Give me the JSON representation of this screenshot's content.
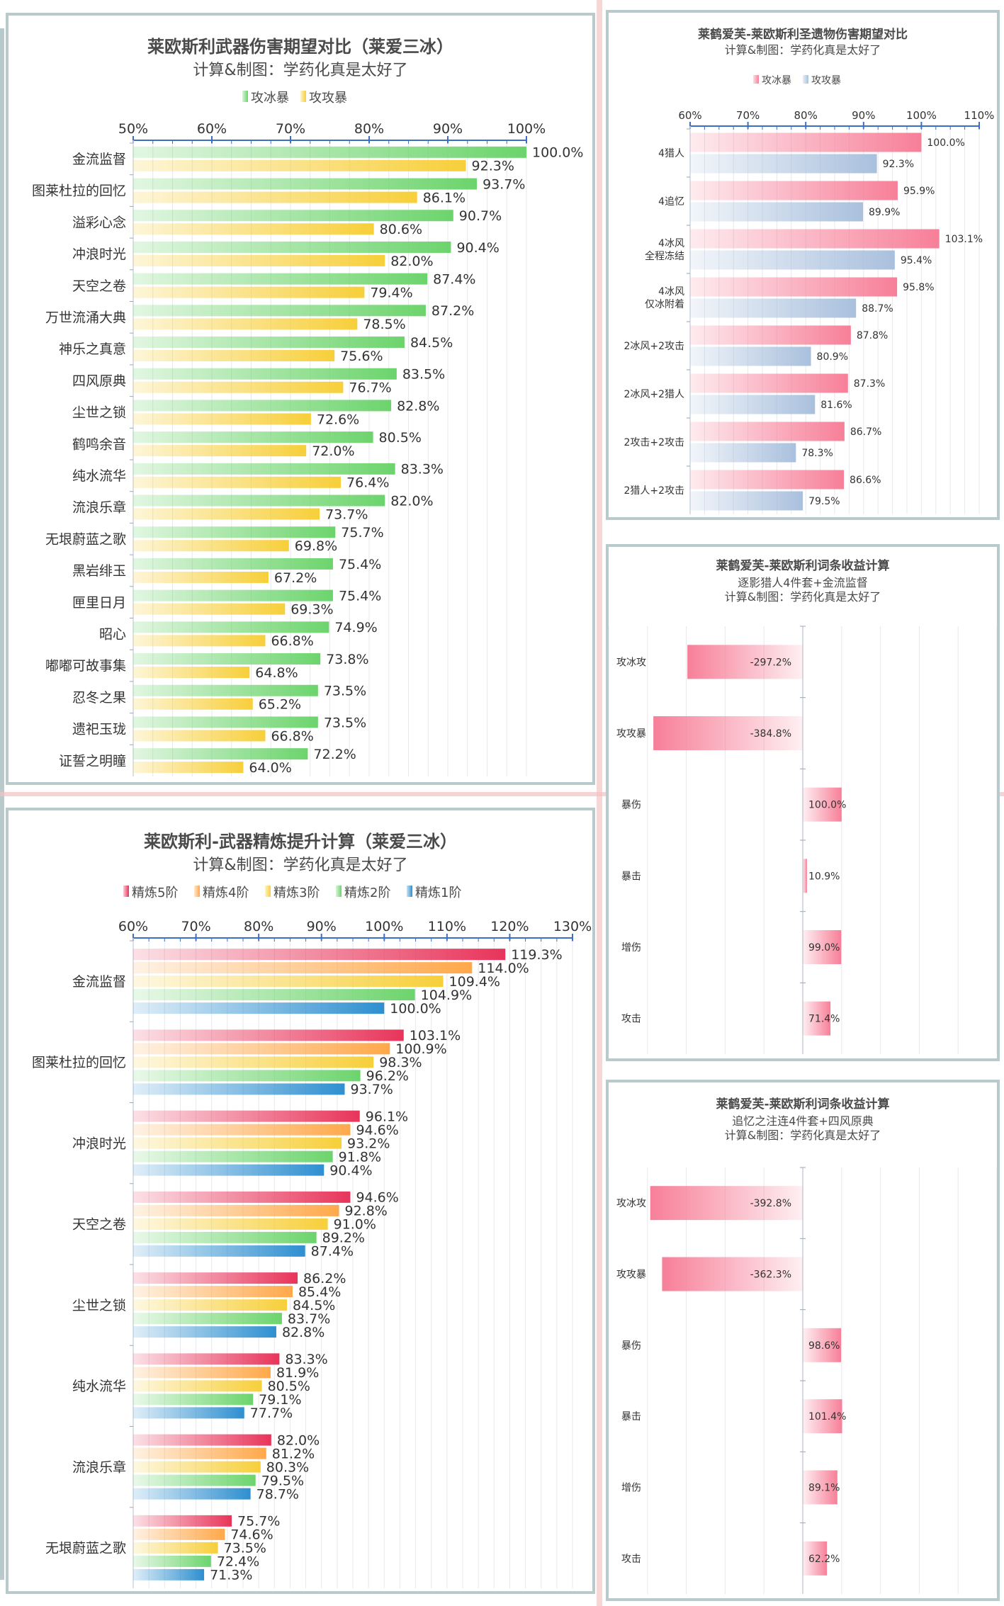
{
  "colors": {
    "ice_crit": "#6cd46c",
    "atk_crit": "#f7cf3a",
    "r5": "#e8345a",
    "r4": "#ffa84a",
    "r3": "#f7cf3a",
    "r2": "#6cd46c",
    "r1": "#2e8fd0",
    "pink": "#f77f98",
    "blue": "#a9c0dd",
    "frame": "#b9cacc",
    "axis": "#3a6fc4"
  },
  "chart_data": [
    {
      "type": "bar",
      "orientation": "horizontal",
      "title": "莱欧斯利武器伤害期望对比（莱爱三冰）",
      "subtitle": "计算&制图：学药化真是太好了",
      "xlim": [
        50,
        100
      ],
      "ticks": [
        "50%",
        "60%",
        "70%",
        "80%",
        "90%",
        "100%"
      ],
      "tick_values": [
        50,
        60,
        70,
        80,
        90,
        100
      ],
      "categories": [
        "金流监督",
        "图莱杜拉的回忆",
        "溢彩心念",
        "冲浪时光",
        "天空之卷",
        "万世流涌大典",
        "神乐之真意",
        "四风原典",
        "尘世之锁",
        "鹤鸣余音",
        "纯水流华",
        "流浪乐章",
        "无垠蔚蓝之歌",
        "黑岩绯玉",
        "匣里日月",
        "昭心",
        "嘟嘟可故事集",
        "忍冬之果",
        "遗祀玉珑",
        "证誓之明瞳"
      ],
      "series": [
        {
          "name": "攻冰暴",
          "color": "ice_crit",
          "values": [
            100.0,
            93.7,
            90.7,
            90.4,
            87.4,
            87.2,
            84.5,
            83.5,
            82.8,
            80.5,
            83.3,
            82.0,
            75.7,
            75.4,
            75.4,
            74.9,
            73.8,
            73.5,
            73.5,
            72.2
          ],
          "labels": [
            "100.0%",
            "93.7%",
            "90.7%",
            "90.4%",
            "87.4%",
            "87.2%",
            "84.5%",
            "83.5%",
            "82.8%",
            "80.5%",
            "83.3%",
            "82.0%",
            "75.7%",
            "75.4%",
            "75.4%",
            "74.9%",
            "73.8%",
            "73.5%",
            "73.5%",
            "72.2%"
          ]
        },
        {
          "name": "攻攻暴",
          "color": "atk_crit",
          "values": [
            92.3,
            86.1,
            80.6,
            82.0,
            79.4,
            78.5,
            75.6,
            76.7,
            72.6,
            72.0,
            76.4,
            73.7,
            69.8,
            67.2,
            69.3,
            66.8,
            64.8,
            65.2,
            66.8,
            64.0
          ],
          "labels": [
            "92.3%",
            "86.1%",
            "80.6%",
            "82.0%",
            "79.4%",
            "78.5%",
            "75.6%",
            "76.7%",
            "72.6%",
            "72.0%",
            "76.4%",
            "73.7%",
            "69.8%",
            "67.2%",
            "69.3%",
            "66.8%",
            "64.8%",
            "65.2%",
            "66.8%",
            "64.0%"
          ]
        }
      ]
    },
    {
      "type": "bar",
      "orientation": "horizontal",
      "title": "莱鹤爱芙-莱欧斯利圣遗物伤害期望对比",
      "subtitle": "计算&制图：学药化真是太好了",
      "xlim": [
        60,
        110
      ],
      "ticks": [
        "60%",
        "70%",
        "80%",
        "90%",
        "100%",
        "110%"
      ],
      "tick_values": [
        60,
        70,
        80,
        90,
        100,
        110
      ],
      "categories": [
        [
          "4猎人"
        ],
        [
          "4追忆"
        ],
        [
          "4冰风",
          "全程冻结"
        ],
        [
          "4冰风",
          "仅冰附着"
        ],
        [
          "2冰风+2攻击"
        ],
        [
          "2冰风+2猎人"
        ],
        [
          "2攻击+2攻击"
        ],
        [
          "2猎人+2攻击"
        ]
      ],
      "series": [
        {
          "name": "攻冰暴",
          "color": "pink",
          "values": [
            100.0,
            95.9,
            103.1,
            95.8,
            87.8,
            87.3,
            86.7,
            86.6
          ],
          "labels": [
            "100.0%",
            "95.9%",
            "103.1%",
            "95.8%",
            "87.8%",
            "87.3%",
            "86.7%",
            "86.6%"
          ]
        },
        {
          "name": "攻攻暴",
          "color": "blue",
          "values": [
            92.3,
            89.9,
            95.4,
            88.7,
            80.9,
            81.6,
            78.3,
            79.5
          ],
          "labels": [
            "92.3%",
            "89.9%",
            "95.4%",
            "88.7%",
            "80.9%",
            "81.6%",
            "78.3%",
            "79.5%"
          ]
        }
      ]
    },
    {
      "type": "bar",
      "orientation": "horizontal",
      "title": "莱鹤爱芙-莱欧斯利词条收益计算",
      "subtitle_lines": [
        "逐影猎人4件套+金流监督",
        "计算&制图：学药化真是太好了"
      ],
      "xlim": [
        -500,
        500
      ],
      "categories": [
        "攻冰攻",
        "攻攻暴",
        "暴伤",
        "暴击",
        "增伤",
        "攻击"
      ],
      "values": [
        -297.2,
        -384.8,
        100.0,
        10.9,
        99.0,
        71.4
      ],
      "labels": [
        "-297.2%",
        "-384.8%",
        "100.0%",
        "10.9%",
        "99.0%",
        "71.4%"
      ]
    },
    {
      "type": "bar",
      "orientation": "horizontal",
      "title": "莱欧斯利-武器精炼提升计算（莱爱三冰）",
      "subtitle": "计算&制图：学药化真是太好了",
      "xlim": [
        60,
        130
      ],
      "ticks": [
        "60%",
        "70%",
        "80%",
        "90%",
        "100%",
        "110%",
        "120%",
        "130%"
      ],
      "tick_values": [
        60,
        70,
        80,
        90,
        100,
        110,
        120,
        130
      ],
      "categories": [
        "金流监督",
        "图莱杜拉的回忆",
        "冲浪时光",
        "天空之卷",
        "尘世之锁",
        "纯水流华",
        "流浪乐章",
        "无垠蔚蓝之歌"
      ],
      "series": [
        {
          "name": "精炼5阶",
          "color": "r5",
          "values": [
            119.3,
            103.1,
            96.1,
            94.6,
            86.2,
            83.3,
            82.0,
            75.7
          ],
          "labels": [
            "119.3%",
            "103.1%",
            "96.1%",
            "94.6%",
            "86.2%",
            "83.3%",
            "82.0%",
            "75.7%"
          ]
        },
        {
          "name": "精炼4阶",
          "color": "r4",
          "values": [
            114.0,
            100.9,
            94.6,
            92.8,
            85.4,
            81.9,
            81.2,
            74.6
          ],
          "labels": [
            "114.0%",
            "100.9%",
            "94.6%",
            "92.8%",
            "85.4%",
            "81.9%",
            "81.2%",
            "74.6%"
          ]
        },
        {
          "name": "精炼3阶",
          "color": "r3",
          "values": [
            109.4,
            98.3,
            93.2,
            91.0,
            84.5,
            80.5,
            80.3,
            73.5
          ],
          "labels": [
            "109.4%",
            "98.3%",
            "93.2%",
            "91.0%",
            "84.5%",
            "80.5%",
            "80.3%",
            "73.5%"
          ]
        },
        {
          "name": "精炼2阶",
          "color": "r2",
          "values": [
            104.9,
            96.2,
            91.8,
            89.2,
            83.7,
            79.1,
            79.5,
            72.4
          ],
          "labels": [
            "104.9%",
            "96.2%",
            "91.8%",
            "89.2%",
            "83.7%",
            "79.1%",
            "79.5%",
            "72.4%"
          ]
        },
        {
          "name": "精炼1阶",
          "color": "r1",
          "values": [
            100.0,
            93.7,
            90.4,
            87.4,
            82.8,
            77.7,
            78.7,
            71.3
          ],
          "labels": [
            "100.0%",
            "93.7%",
            "90.4%",
            "87.4%",
            "82.8%",
            "77.7%",
            "78.7%",
            "71.3%"
          ]
        }
      ]
    },
    {
      "type": "bar",
      "orientation": "horizontal",
      "title": "莱鹤爱芙-莱欧斯利词条收益计算",
      "subtitle_lines": [
        "追忆之注连4件套+四风原典",
        "计算&制图：学药化真是太好了"
      ],
      "xlim": [
        -500,
        500
      ],
      "categories": [
        "攻冰攻",
        "攻攻暴",
        "暴伤",
        "暴击",
        "增伤",
        "攻击"
      ],
      "values": [
        -392.8,
        -362.3,
        98.6,
        101.4,
        89.1,
        62.2
      ],
      "labels": [
        "-392.8%",
        "-362.3%",
        "98.6%",
        "101.4%",
        "89.1%",
        "62.2%"
      ]
    }
  ]
}
